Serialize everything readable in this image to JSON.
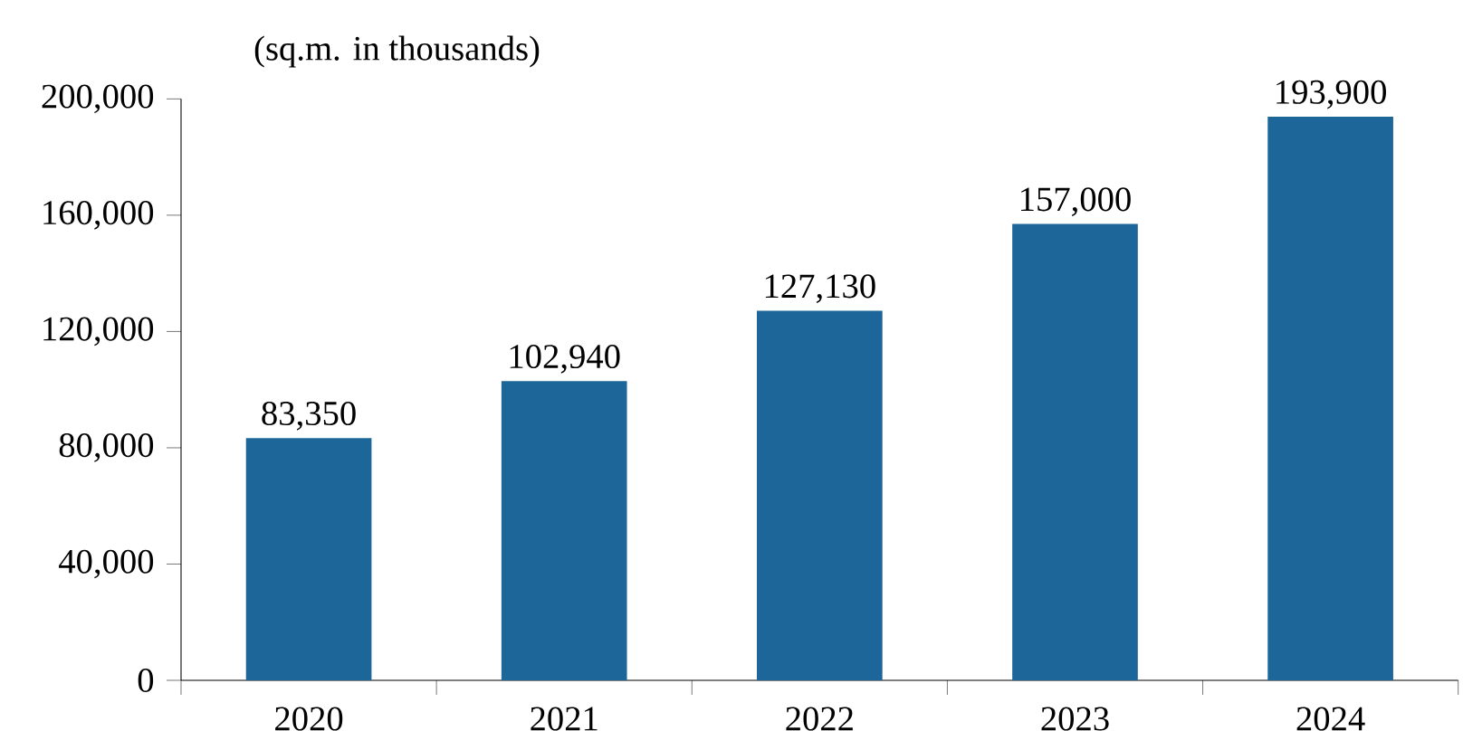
{
  "chart_data": {
    "type": "bar",
    "ylabel": "(sq.m. in thousands)",
    "categories": [
      "2020",
      "2021",
      "2022",
      "2023",
      "2024"
    ],
    "values": [
      83350,
      102940,
      127130,
      157000,
      193900
    ],
    "value_labels": [
      "83,350",
      "102,940",
      "127,130",
      "157,000",
      "193,900"
    ],
    "color": "#1c6699",
    "ylim": [
      0,
      200000
    ],
    "yticks": [
      {
        "value": 0,
        "label": "0"
      },
      {
        "value": 40000,
        "label": "40,000"
      },
      {
        "value": 80000,
        "label": "80,000"
      },
      {
        "value": 120000,
        "label": "120,000"
      },
      {
        "value": 160000,
        "label": "160,000"
      },
      {
        "value": 200000,
        "label": "200,000"
      }
    ],
    "grid": false
  }
}
